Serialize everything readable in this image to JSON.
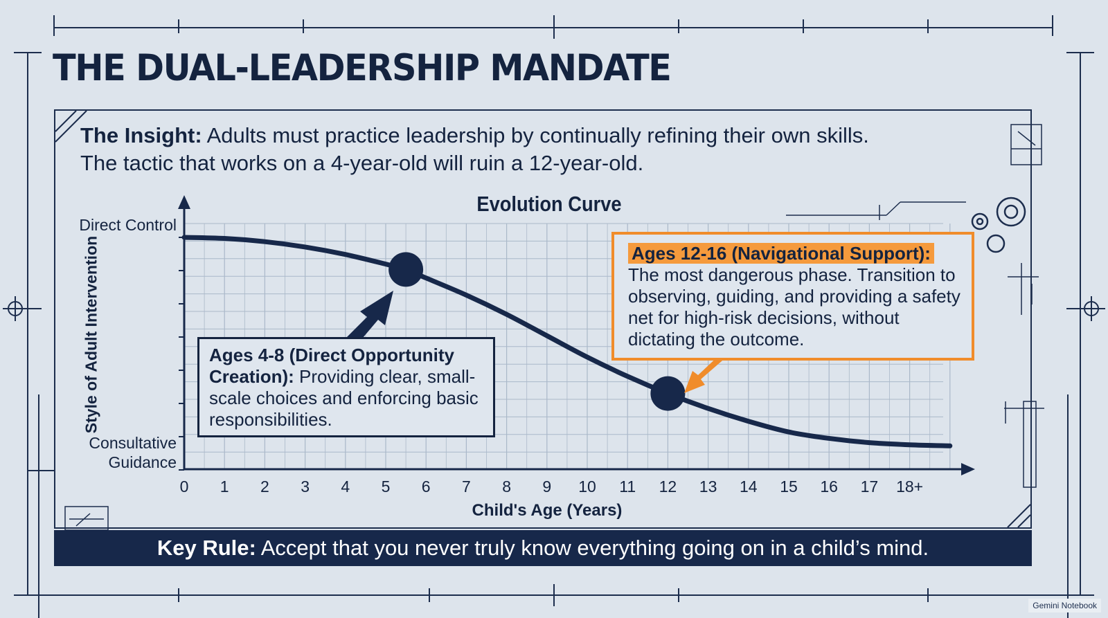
{
  "header": {
    "title": "THE DUAL-LEADERSHIP MANDATE"
  },
  "insight": {
    "label": "The Insight:",
    "line1": "Adults must practice leadership by continually refining their own skills.",
    "line2": "The tactic that works on a 4-year-old will ruin a 12-year-old."
  },
  "callouts": {
    "early": {
      "heading": "Ages 4-8 (Direct Opportunity Creation):",
      "body": "Providing clear, small-scale choices and enforcing basic responsibilities."
    },
    "teen": {
      "heading": "Ages 12-16 (Navigational Support):",
      "body": "The most dangerous phase. Transition to observing, guiding, and providing a safety net for high-risk decisions, without dictating the outcome."
    }
  },
  "footer": {
    "key_rule_label": "Key Rule:",
    "key_rule_text": "Accept that you never truly know everything going on in a child’s mind."
  },
  "watermark": "Gemini Notebook",
  "colors": {
    "navy": "#17284a",
    "orange": "#f08c2b",
    "background": "#dde4ec",
    "grid": "#aab8c9"
  },
  "chart_data": {
    "type": "line",
    "title": "Evolution Curve",
    "xlabel": "Child's Age (Years)",
    "ylabel": "Style of Adult Intervention",
    "x_tick_labels": [
      "0",
      "1",
      "2",
      "3",
      "4",
      "5",
      "6",
      "7",
      "8",
      "9",
      "10",
      "11",
      "12",
      "13",
      "14",
      "15",
      "16",
      "17",
      "18+"
    ],
    "y_tick_labels": {
      "top": "Direct Control",
      "bottom": "Consultative Guidance"
    },
    "xlim": [
      0,
      19
    ],
    "ylim": [
      0,
      1
    ],
    "grid": true,
    "series": [
      {
        "x": [
          0,
          1,
          2,
          3,
          4,
          5,
          5.5,
          6,
          7,
          8,
          9,
          10,
          11,
          12,
          13,
          14,
          15,
          16,
          17,
          18,
          19
        ],
        "y": [
          1.0,
          0.995,
          0.98,
          0.955,
          0.92,
          0.875,
          0.85,
          0.81,
          0.73,
          0.64,
          0.54,
          0.44,
          0.35,
          0.27,
          0.2,
          0.14,
          0.09,
          0.06,
          0.04,
          0.03,
          0.025
        ]
      }
    ],
    "markers": [
      {
        "x": 5.5,
        "y": 0.85
      },
      {
        "x": 12.0,
        "y": 0.27
      }
    ]
  }
}
